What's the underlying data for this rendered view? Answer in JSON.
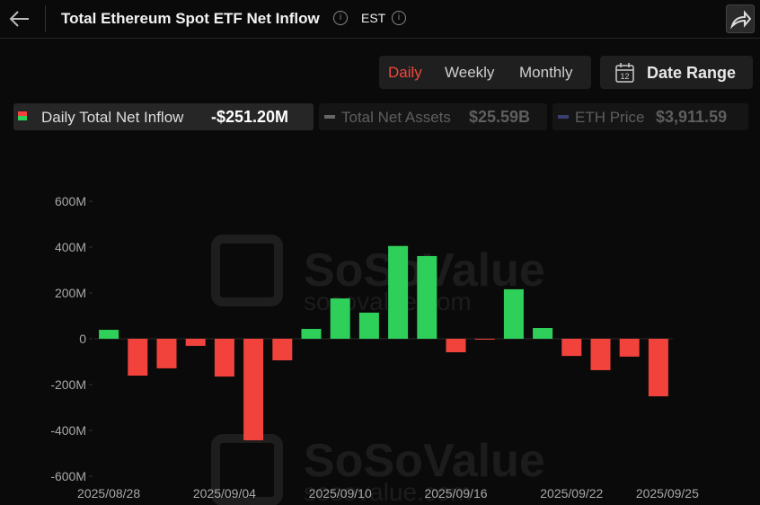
{
  "header": {
    "title": "Total Ethereum Spot ETF Net Inflow",
    "timezone": "EST"
  },
  "tabs": [
    "Daily",
    "Weekly",
    "Monthly"
  ],
  "active_tab": 0,
  "date_range": {
    "label": "Date Range",
    "icon_day": "12"
  },
  "legend": [
    {
      "name": "Daily Total Net Inflow",
      "value": "-$251.20M"
    },
    {
      "name": "Total Net Assets",
      "value": "$25.59B"
    },
    {
      "name": "ETH Price",
      "value": "$3,911.59"
    }
  ],
  "watermark": {
    "brand": "SoSoValue",
    "site": "sosovalue.com"
  },
  "chart_data": {
    "type": "bar",
    "categories": [
      "2025/08/28",
      null,
      null,
      null,
      "2025/09/04",
      null,
      null,
      null,
      "2025/09/10",
      null,
      null,
      null,
      "2025/09/16",
      null,
      null,
      null,
      "2025/09/22",
      null,
      null,
      "2025/09/25"
    ],
    "values": [
      39,
      -161,
      -129,
      -31,
      -165,
      -443,
      -94,
      43,
      176,
      114,
      405,
      361,
      -59,
      -1,
      216,
      47,
      -75,
      -137,
      -78,
      -251.2
    ],
    "positive_color": "#2fd05a",
    "negative_color": "#f2423c",
    "ylim": [
      -600,
      600
    ],
    "yticks": [
      {
        "value": -600,
        "label": "-600M"
      },
      {
        "value": -400,
        "label": "-400M"
      },
      {
        "value": -200,
        "label": "-200M"
      },
      0,
      {
        "value": 200,
        "label": "200M"
      },
      {
        "value": 400,
        "label": "400M"
      },
      {
        "value": 600,
        "label": "600M"
      }
    ],
    "grid": false
  }
}
